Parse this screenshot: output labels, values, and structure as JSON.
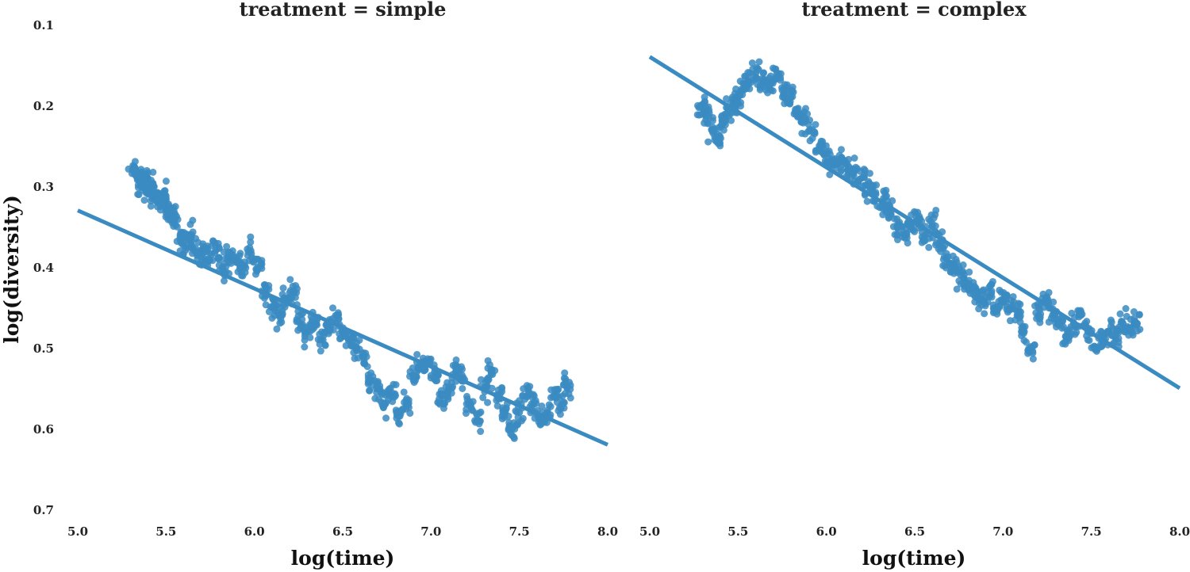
{
  "chart_data": [
    {
      "type": "scatter",
      "title": "treatment = simple",
      "xlabel": "log(time)",
      "ylabel": "log(diversity)",
      "xlim": [
        5.0,
        8.0
      ],
      "ylim": [
        0.1,
        0.7
      ],
      "y_inverted": true,
      "grid": false,
      "xticks": [
        "5.0",
        "5.5",
        "6.0",
        "6.5",
        "7.0",
        "7.5",
        "8.0"
      ],
      "yticks": [
        "0.1",
        "0.2",
        "0.3",
        "0.4",
        "0.5",
        "0.6",
        "0.7"
      ],
      "color": "#3a8bc2",
      "trend_line": {
        "x": [
          5.0,
          8.0
        ],
        "y": [
          0.33,
          0.62
        ]
      },
      "series": [
        {
          "points_x": [
            5.31,
            5.34,
            5.36,
            5.38,
            5.4,
            5.43,
            5.45,
            5.48,
            5.5,
            5.52,
            5.55,
            5.58,
            5.6,
            5.63,
            5.66,
            5.7,
            5.74,
            5.78,
            5.82,
            5.86,
            5.9,
            5.94,
            5.98,
            6.02,
            6.06,
            6.1,
            6.14,
            6.18,
            6.22,
            6.26,
            6.3,
            6.34,
            6.38,
            6.42,
            6.46,
            6.5,
            6.54,
            6.58,
            6.62,
            6.66,
            6.7,
            6.74,
            6.78,
            6.82,
            6.86,
            6.9,
            6.94,
            6.98,
            7.02,
            7.06,
            7.1,
            7.14,
            7.18,
            7.22,
            7.26,
            7.3,
            7.34,
            7.38,
            7.42,
            7.46,
            7.5,
            7.54,
            7.58,
            7.62,
            7.66,
            7.7,
            7.74,
            7.77
          ],
          "points_y": [
            0.28,
            0.29,
            0.3,
            0.29,
            0.31,
            0.3,
            0.32,
            0.31,
            0.33,
            0.33,
            0.34,
            0.36,
            0.37,
            0.36,
            0.38,
            0.38,
            0.39,
            0.38,
            0.4,
            0.39,
            0.39,
            0.4,
            0.38,
            0.4,
            0.43,
            0.45,
            0.46,
            0.44,
            0.43,
            0.47,
            0.48,
            0.47,
            0.49,
            0.47,
            0.46,
            0.48,
            0.49,
            0.5,
            0.51,
            0.54,
            0.55,
            0.57,
            0.56,
            0.58,
            0.57,
            0.54,
            0.52,
            0.52,
            0.53,
            0.56,
            0.55,
            0.53,
            0.54,
            0.57,
            0.59,
            0.55,
            0.53,
            0.56,
            0.58,
            0.6,
            0.58,
            0.56,
            0.57,
            0.59,
            0.58,
            0.56,
            0.57,
            0.55
          ]
        }
      ]
    },
    {
      "type": "scatter",
      "title": "treatment = complex",
      "xlabel": "log(time)",
      "ylabel": "",
      "xlim": [
        5.0,
        8.0
      ],
      "ylim": [
        0.1,
        0.7
      ],
      "y_inverted": true,
      "grid": false,
      "xticks": [
        "5.0",
        "5.5",
        "6.0",
        "6.5",
        "7.0",
        "7.5",
        "8.0"
      ],
      "color": "#3a8bc2",
      "trend_line": {
        "x": [
          5.0,
          8.0
        ],
        "y": [
          0.14,
          0.55
        ]
      },
      "series": [
        {
          "points_x": [
            5.29,
            5.32,
            5.35,
            5.38,
            5.41,
            5.44,
            5.47,
            5.5,
            5.53,
            5.56,
            5.6,
            5.64,
            5.68,
            5.72,
            5.76,
            5.8,
            5.84,
            5.88,
            5.92,
            5.96,
            6.0,
            6.04,
            6.08,
            6.12,
            6.16,
            6.2,
            6.24,
            6.28,
            6.32,
            6.36,
            6.4,
            6.44,
            6.48,
            6.52,
            6.56,
            6.6,
            6.64,
            6.68,
            6.72,
            6.76,
            6.8,
            6.84,
            6.88,
            6.92,
            6.96,
            7.0,
            7.04,
            7.08,
            7.12,
            7.16,
            7.2,
            7.24,
            7.28,
            7.32,
            7.36,
            7.4,
            7.44,
            7.48,
            7.52,
            7.56,
            7.6,
            7.64,
            7.68,
            7.72,
            7.76
          ],
          "points_y": [
            0.2,
            0.21,
            0.23,
            0.24,
            0.22,
            0.21,
            0.2,
            0.19,
            0.18,
            0.17,
            0.16,
            0.17,
            0.18,
            0.16,
            0.18,
            0.19,
            0.21,
            0.22,
            0.23,
            0.25,
            0.26,
            0.27,
            0.27,
            0.28,
            0.28,
            0.29,
            0.3,
            0.31,
            0.32,
            0.33,
            0.35,
            0.36,
            0.35,
            0.34,
            0.36,
            0.35,
            0.37,
            0.39,
            0.4,
            0.41,
            0.42,
            0.43,
            0.44,
            0.43,
            0.45,
            0.44,
            0.45,
            0.46,
            0.48,
            0.5,
            0.46,
            0.44,
            0.46,
            0.47,
            0.49,
            0.47,
            0.46,
            0.48,
            0.5,
            0.49,
            0.48,
            0.49,
            0.47,
            0.48,
            0.47
          ]
        }
      ]
    }
  ]
}
